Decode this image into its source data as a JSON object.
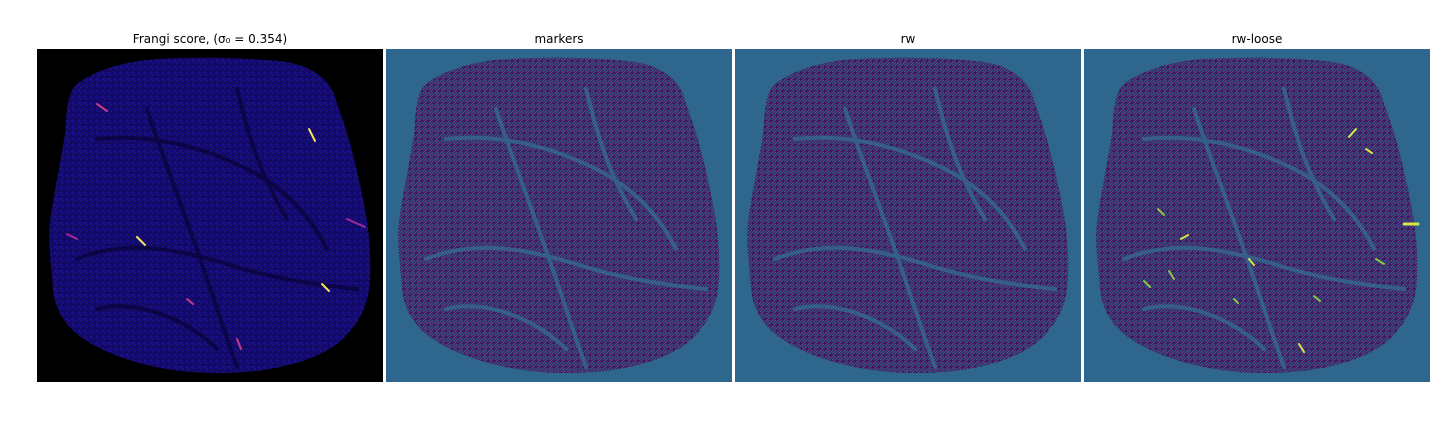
{
  "figure": {
    "panels": [
      {
        "title": "Frangi score, (σ₀ = 0.354)",
        "background_color": "#000000",
        "tissue_color": "#1a0f8a",
        "vessel_color": "#0b0440",
        "highlight_colors": [
          "#f2e35b",
          "#c83a8a",
          "#a02a9a"
        ]
      },
      {
        "title": "markers",
        "background_color": "#2f668d",
        "tissue_color": "#47125e",
        "vessel_color": "#35648b"
      },
      {
        "title": "rw",
        "background_color": "#2f668d",
        "tissue_color": "#47125e",
        "vessel_color": "#35648b"
      },
      {
        "title": "rw-loose",
        "background_color": "#2f668d",
        "tissue_color": "#47125e",
        "vessel_color": "#35648b",
        "highlight_colors": [
          "#d6e54a",
          "#86c64a"
        ]
      }
    ]
  }
}
